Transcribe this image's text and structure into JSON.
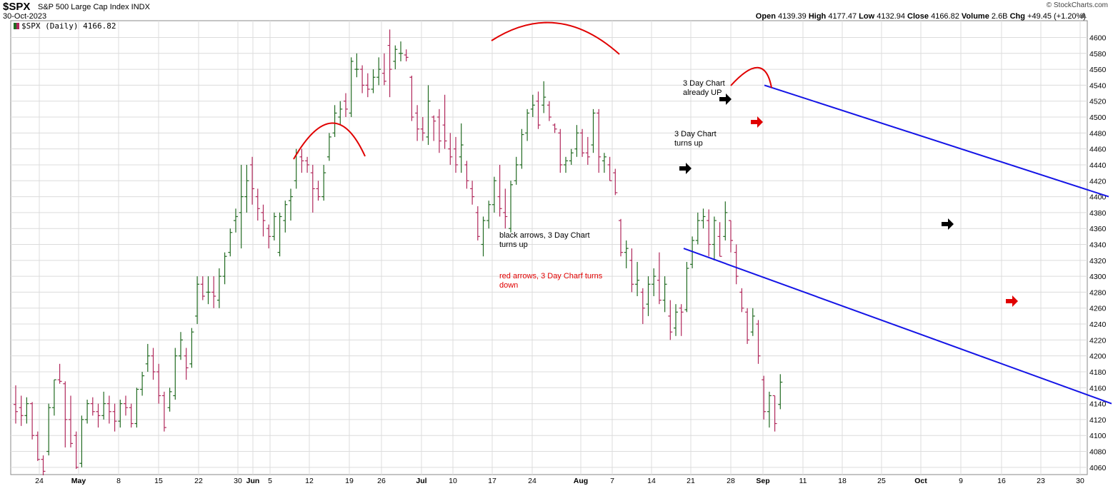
{
  "header": {
    "symbol": "$SPX",
    "description": "S&P 500 Large Cap Index  INDX",
    "date": "30-Oct-2023",
    "brand": "© StockCharts.com",
    "open_label": "Open",
    "open": "4139.39",
    "high_label": "High",
    "high": "4177.47",
    "low_label": "Low",
    "low": "4132.94",
    "close_label": "Close",
    "close": "4166.82",
    "volume_label": "Volume",
    "volume": "2.6B",
    "chg_label": "Chg",
    "chg": "+49.45 (+1.20%)",
    "collapse_icon": "triangle-up-icon"
  },
  "legend": "$SPX (Daily) 4166.82",
  "annotations": {
    "arrows_note": "black arrows, 3 Day Chart turns up",
    "red_note": "red arrows, 3 Day Charf turns down",
    "already_up": "3 Day Chart already UP",
    "turns_up": "3 Day Chart turns up"
  },
  "colors": {
    "up": "#226b22",
    "down": "#b0285b",
    "channel": "#1414e6",
    "arc": "#e00000",
    "grid": "#dcdcdc"
  },
  "chart_data": {
    "type": "ohlc",
    "title": "$SPX (Daily) 4166.82",
    "ylim": [
      4040,
      4610
    ],
    "yticks": [
      4060,
      4080,
      4100,
      4120,
      4140,
      4160,
      4180,
      4200,
      4220,
      4240,
      4260,
      4280,
      4300,
      4320,
      4340,
      4360,
      4380,
      4400,
      4420,
      4440,
      4460,
      4480,
      4500,
      4520,
      4540,
      4560,
      4580,
      4600
    ],
    "x_tick_labels": [
      "24",
      "May",
      "8",
      "15",
      "22",
      "30",
      "Jun",
      "5",
      "12",
      "19",
      "26",
      "Jul",
      "10",
      "17",
      "24",
      "Aug",
      "7",
      "14",
      "21",
      "28",
      "Sep",
      "11",
      "18",
      "25",
      "Oct",
      "9",
      "16",
      "23",
      "30"
    ],
    "bold_tick_labels": [
      "May",
      "Jun",
      "Jul",
      "Aug",
      "Sep",
      "Oct"
    ],
    "bars_note": "daily OHLC bars, 19-Apr-2023 to 30-Oct-2023, values estimated from the axis",
    "bars": [
      [
        4139,
        4163,
        4115,
        4130
      ],
      [
        4135,
        4150,
        4112,
        4125
      ],
      [
        4125,
        4148,
        4115,
        4140
      ],
      [
        4140,
        4142,
        4095,
        4100
      ],
      [
        4100,
        4105,
        4068,
        4070
      ],
      [
        4070,
        4075,
        4050,
        4055
      ],
      [
        4080,
        4140,
        4075,
        4135
      ],
      [
        4135,
        4170,
        4125,
        4170
      ],
      [
        4170,
        4190,
        4165,
        4168
      ],
      [
        4165,
        4168,
        4085,
        4120
      ],
      [
        4120,
        4150,
        4085,
        4090
      ],
      [
        4100,
        4105,
        4058,
        4060
      ],
      [
        4065,
        4125,
        4060,
        4120
      ],
      [
        4120,
        4145,
        4115,
        4140
      ],
      [
        4140,
        4148,
        4125,
        4130
      ],
      [
        4130,
        4140,
        4110,
        4125
      ],
      [
        4125,
        4155,
        4120,
        4140
      ],
      [
        4140,
        4150,
        4115,
        4130
      ],
      [
        4130,
        4140,
        4105,
        4118
      ],
      [
        4118,
        4145,
        4110,
        4140
      ],
      [
        4140,
        4150,
        4125,
        4135
      ],
      [
        4135,
        4140,
        4110,
        4115
      ],
      [
        4115,
        4160,
        4110,
        4158
      ],
      [
        4158,
        4180,
        4150,
        4175
      ],
      [
        4190,
        4215,
        4180,
        4200
      ],
      [
        4200,
        4210,
        4170,
        4180
      ],
      [
        4180,
        4190,
        4140,
        4150
      ],
      [
        4150,
        4155,
        4105,
        4110
      ],
      [
        4135,
        4160,
        4130,
        4155
      ],
      [
        4150,
        4210,
        4145,
        4200
      ],
      [
        4200,
        4230,
        4195,
        4220
      ],
      [
        4200,
        4210,
        4170,
        4185
      ],
      [
        4190,
        4235,
        4185,
        4230
      ],
      [
        4250,
        4300,
        4240,
        4290
      ],
      [
        4290,
        4300,
        4270,
        4275
      ],
      [
        4280,
        4300,
        4265,
        4280
      ],
      [
        4280,
        4300,
        4260,
        4275
      ],
      [
        4270,
        4310,
        4260,
        4300
      ],
      [
        4300,
        4330,
        4290,
        4325
      ],
      [
        4330,
        4360,
        4325,
        4355
      ],
      [
        4370,
        4385,
        4355,
        4375
      ],
      [
        4380,
        4440,
        4335,
        4400
      ],
      [
        4400,
        4440,
        4380,
        4420
      ],
      [
        4440,
        4450,
        4390,
        4410
      ],
      [
        4400,
        4410,
        4370,
        4385
      ],
      [
        4380,
        4390,
        4350,
        4370
      ],
      [
        4360,
        4365,
        4335,
        4350
      ],
      [
        4350,
        4380,
        4345,
        4375
      ],
      [
        4330,
        4380,
        4325,
        4375
      ],
      [
        4370,
        4395,
        4355,
        4390
      ],
      [
        4395,
        4410,
        4370,
        4400
      ],
      [
        4420,
        4460,
        4410,
        4455
      ],
      [
        4450,
        4460,
        4430,
        4445
      ],
      [
        4445,
        4450,
        4430,
        4440
      ],
      [
        4430,
        4440,
        4380,
        4410
      ],
      [
        4410,
        4420,
        4395,
        4400
      ],
      [
        4400,
        4440,
        4395,
        4430
      ],
      [
        4450,
        4480,
        4445,
        4475
      ],
      [
        4480,
        4515,
        4475,
        4505
      ],
      [
        4500,
        4520,
        4490,
        4510
      ],
      [
        4520,
        4530,
        4500,
        4510
      ],
      [
        4505,
        4575,
        4500,
        4570
      ],
      [
        4560,
        4580,
        4550,
        4560
      ],
      [
        4560,
        4565,
        4530,
        4540
      ],
      [
        4540,
        4555,
        4525,
        4535
      ],
      [
        4535,
        4560,
        4530,
        4550
      ],
      [
        4550,
        4575,
        4540,
        4560
      ],
      [
        4555,
        4580,
        4540,
        4545
      ],
      [
        4590,
        4610,
        4525,
        4560
      ],
      [
        4570,
        4590,
        4560,
        4585
      ],
      [
        4580,
        4595,
        4570,
        4580
      ],
      [
        4578,
        4585,
        4570,
        4575
      ],
      [
        4550,
        4552,
        4495,
        4500
      ],
      [
        4505,
        4515,
        4470,
        4485
      ],
      [
        4485,
        4500,
        4470,
        4480
      ],
      [
        4475,
        4540,
        4465,
        4520
      ],
      [
        4500,
        4502,
        4470,
        4495
      ],
      [
        4500,
        4510,
        4455,
        4470
      ],
      [
        4490,
        4528,
        4460,
        4470
      ],
      [
        4460,
        4480,
        4440,
        4450
      ],
      [
        4460,
        4475,
        4430,
        4440
      ],
      [
        4450,
        4492,
        4430,
        4465
      ],
      [
        4440,
        4445,
        4410,
        4420
      ],
      [
        4410,
        4420,
        4390,
        4400
      ],
      [
        4380,
        4388,
        4345,
        4350
      ],
      [
        4340,
        4375,
        4325,
        4370
      ],
      [
        4370,
        4395,
        4360,
        4390
      ],
      [
        4390,
        4425,
        4380,
        4420
      ],
      [
        4400,
        4440,
        4375,
        4385
      ],
      [
        4380,
        4410,
        4360,
        4375
      ],
      [
        4360,
        4420,
        4355,
        4415
      ],
      [
        4420,
        4450,
        4415,
        4440
      ],
      [
        4440,
        4485,
        4435,
        4478
      ],
      [
        4480,
        4510,
        4470,
        4505
      ],
      [
        4510,
        4528,
        4500,
        4515
      ],
      [
        4520,
        4532,
        4485,
        4490
      ],
      [
        4515,
        4545,
        4505,
        4525
      ],
      [
        4515,
        4520,
        4495,
        4500
      ],
      [
        4490,
        4492,
        4480,
        4485
      ],
      [
        4480,
        4485,
        4430,
        4440
      ],
      [
        4440,
        4450,
        4430,
        4445
      ],
      [
        4445,
        4460,
        4440,
        4455
      ],
      [
        4460,
        4490,
        4450,
        4480
      ],
      [
        4480,
        4485,
        4450,
        4455
      ],
      [
        4455,
        4475,
        4440,
        4450
      ],
      [
        4465,
        4510,
        4455,
        4505
      ],
      [
        4505,
        4510,
        4430,
        4450
      ],
      [
        4445,
        4455,
        4430,
        4450
      ],
      [
        4440,
        4450,
        4420,
        4420
      ],
      [
        4430,
        4435,
        4402,
        4405
      ],
      [
        4370,
        4372,
        4325,
        4330
      ],
      [
        4330,
        4345,
        4310,
        4335
      ],
      [
        4320,
        4335,
        4280,
        4290
      ],
      [
        4290,
        4318,
        4275,
        4295
      ],
      [
        4280,
        4285,
        4240,
        4260
      ],
      [
        4265,
        4300,
        4250,
        4290
      ],
      [
        4290,
        4310,
        4275,
        4300
      ],
      [
        4295,
        4330,
        4265,
        4270
      ],
      [
        4270,
        4300,
        4255,
        4290
      ],
      [
        4250,
        4270,
        4220,
        4230
      ],
      [
        4235,
        4265,
        4225,
        4255
      ],
      [
        4260,
        4265,
        4225,
        4255
      ],
      [
        4258,
        4318,
        4255,
        4310
      ],
      [
        4315,
        4350,
        4310,
        4345
      ],
      [
        4345,
        4380,
        4340,
        4370
      ],
      [
        4370,
        4385,
        4360,
        4375
      ],
      [
        4370,
        4384,
        4325,
        4340
      ],
      [
        4340,
        4375,
        4320,
        4370
      ],
      [
        4350,
        4368,
        4325,
        4325
      ],
      [
        4350,
        4394,
        4345,
        4380
      ],
      [
        4370,
        4370,
        4330,
        4345
      ],
      [
        4330,
        4340,
        4290,
        4300
      ],
      [
        4280,
        4285,
        4255,
        4260
      ],
      [
        4255,
        4260,
        4215,
        4220
      ],
      [
        4230,
        4260,
        4225,
        4250
      ],
      [
        4240,
        4245,
        4190,
        4200
      ],
      [
        4170,
        4175,
        4120,
        4130
      ],
      [
        4130,
        4155,
        4110,
        4150
      ],
      [
        4150,
        4150,
        4105,
        4115
      ],
      [
        4139,
        4177,
        4133,
        4167
      ]
    ],
    "annotations": [
      {
        "text": "3 Day Chart already UP"
      },
      {
        "text": "3 Day Chart turns up"
      },
      {
        "text": "black arrows, 3 Day Chart turns up"
      },
      {
        "text": "red arrows, 3 Day Charf turns down"
      }
    ],
    "arrows": [
      {
        "color": "black",
        "bar": 100
      },
      {
        "color": "black",
        "bar": 108
      },
      {
        "color": "red",
        "bar": 113
      },
      {
        "color": "black",
        "bar": 150
      },
      {
        "color": "red",
        "bar": 164
      }
    ]
  }
}
